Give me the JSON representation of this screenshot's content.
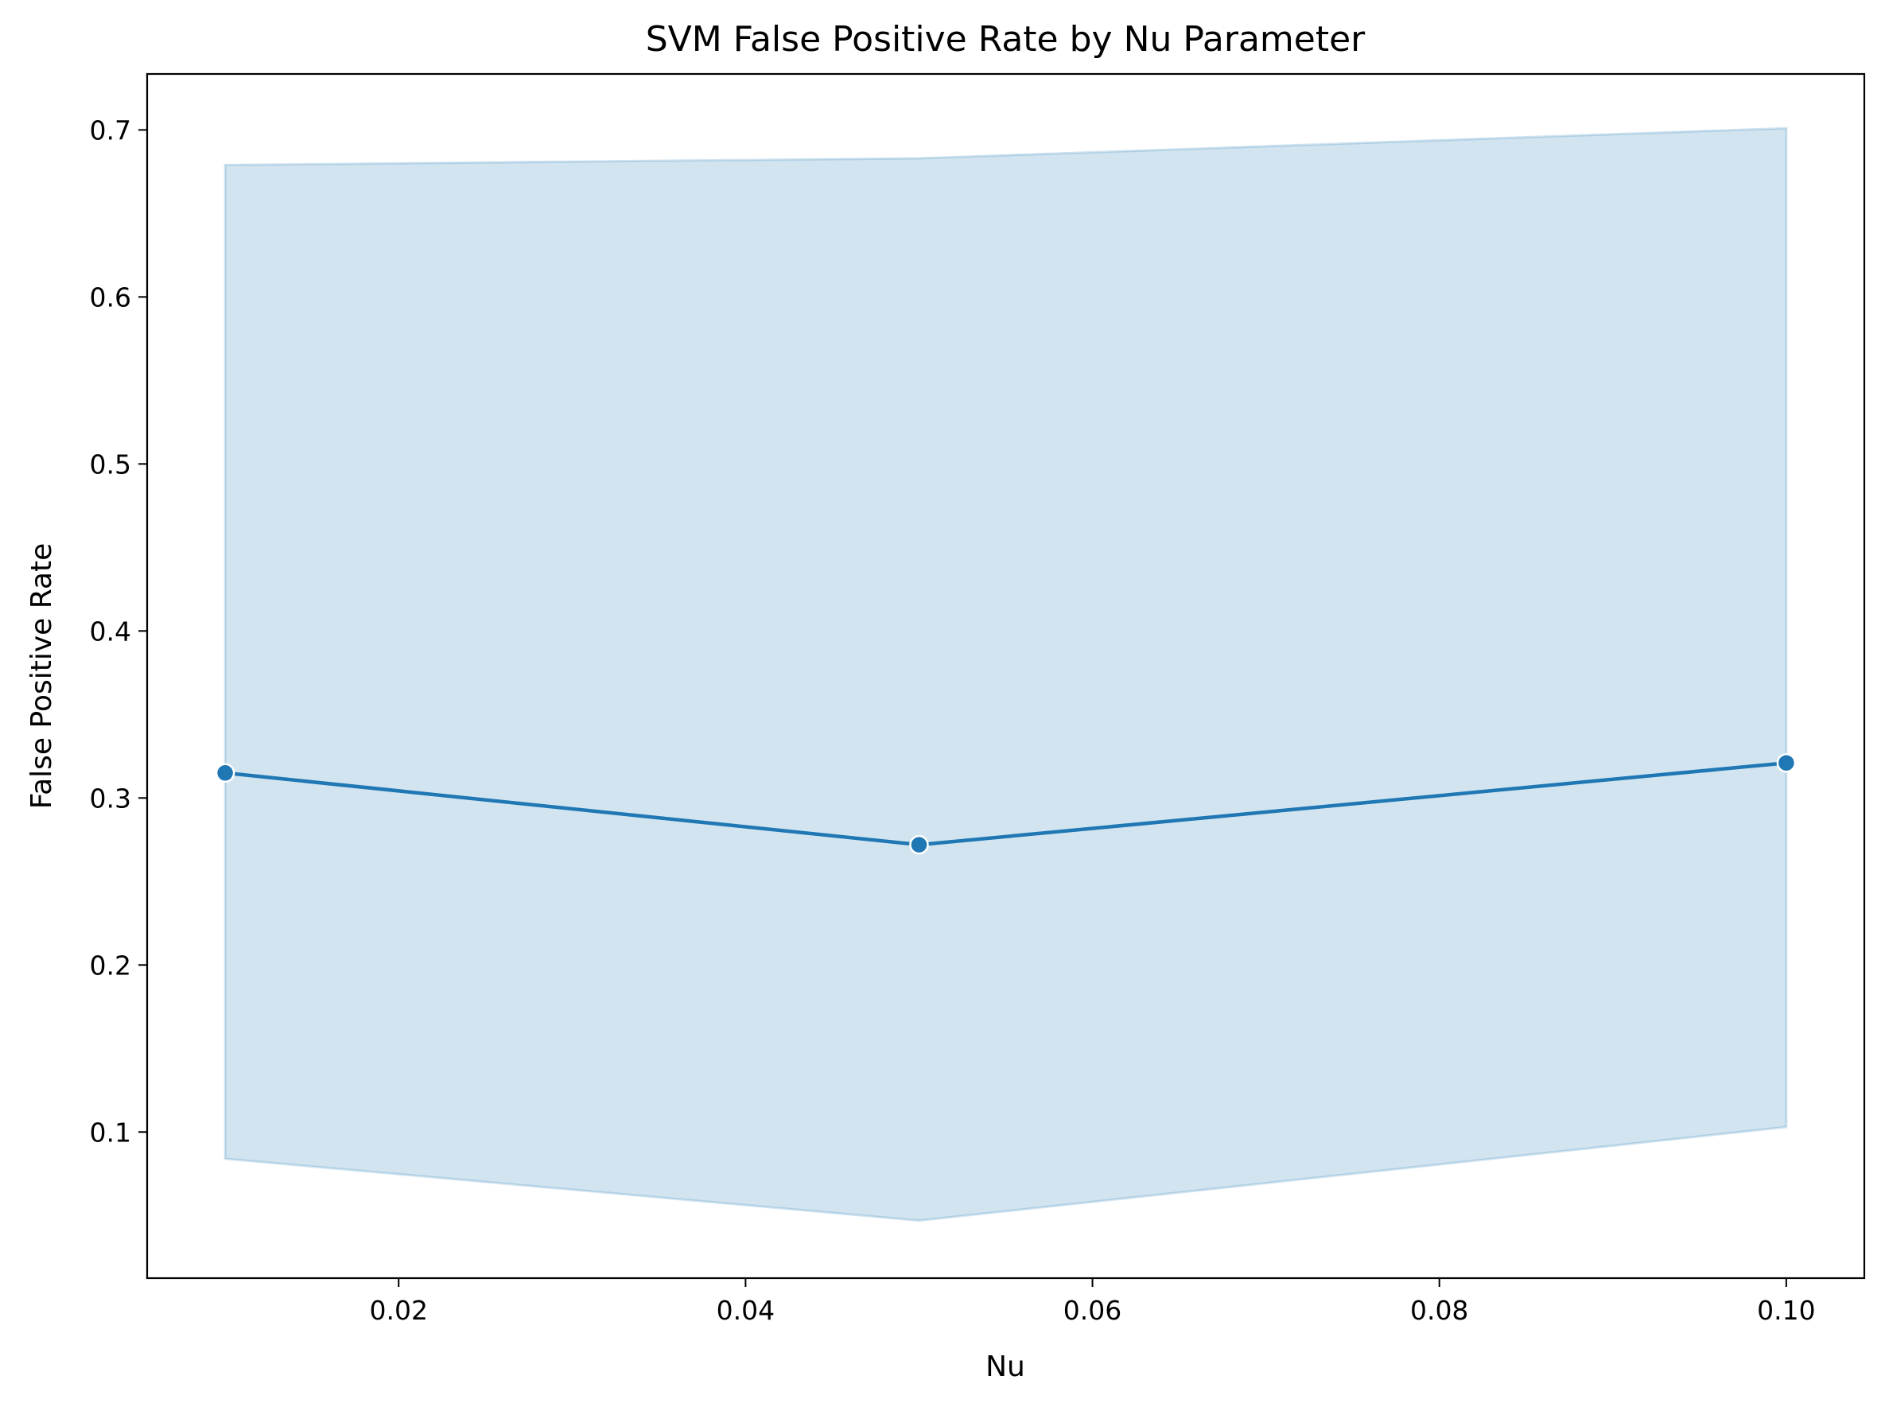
{
  "chart_data": {
    "type": "line",
    "title": "SVM False Positive Rate by Nu Parameter",
    "xlabel": "Nu",
    "ylabel": "False Positive Rate",
    "xlim": [
      0.0055,
      0.1045
    ],
    "ylim": [
      0.0125,
      0.7335
    ],
    "x_ticks": [
      0.02,
      0.04,
      0.06,
      0.08,
      0.1
    ],
    "x_tick_labels": [
      "0.02",
      "0.04",
      "0.06",
      "0.08",
      "0.10"
    ],
    "y_ticks": [
      0.1,
      0.2,
      0.3,
      0.4,
      0.5,
      0.6,
      0.7
    ],
    "y_tick_labels": [
      "0.1",
      "0.2",
      "0.3",
      "0.4",
      "0.5",
      "0.6",
      "0.7"
    ],
    "grid": false,
    "series": [
      {
        "x": [
          0.01,
          0.05,
          0.1
        ],
        "y": [
          0.315,
          0.272,
          0.321
        ],
        "ci_lower": [
          0.084,
          0.047,
          0.103
        ],
        "ci_upper": [
          0.679,
          0.683,
          0.701
        ],
        "color": "#1f77b4",
        "band_color": "#1f77b4",
        "marker": "circle"
      }
    ]
  }
}
